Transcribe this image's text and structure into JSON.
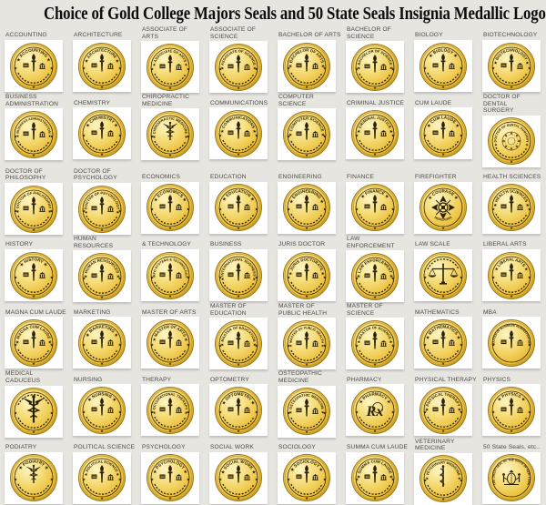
{
  "page": {
    "title": "Choice of Gold College Majors Seals and 50 State Seals Insignia Medallic Logos",
    "background_color": "#e7e5e0",
    "card_color": "#ffffff"
  },
  "colors": {
    "gold_light": "#fdf4c2",
    "gold_mid": "#f5da72",
    "gold_deep": "#eabe38",
    "gold_rim": "#c49a2a",
    "gold_edge": "#9a7716",
    "emblem_dark": "#2b2103",
    "ornate": "#7a5d12",
    "label_text": "#4b4b47",
    "title_text": "#0d0d0d"
  },
  "seals": [
    {
      "label": "ACCOUNTING",
      "seal_text": "ACCOUNTING",
      "center": "torch",
      "icon": "torch-emblem-icon"
    },
    {
      "label": "ARCHITECTURE",
      "seal_text": "ARCHITECTURE",
      "center": "torch",
      "icon": "torch-emblem-icon"
    },
    {
      "label": "ASSOCIATE OF ARTS",
      "seal_text": "ASSOCIATE OF ARTS",
      "center": "torch",
      "icon": "torch-emblem-icon"
    },
    {
      "label": "ASSOCIATE OF SCIENCE",
      "seal_text": "ASSOCIATE OF SCIENCE",
      "center": "torch",
      "icon": "torch-emblem-icon"
    },
    {
      "label": "BACHELOR OF ARTS",
      "seal_text": "BACHELOR OF ARTS",
      "center": "torch",
      "icon": "torch-emblem-icon"
    },
    {
      "label": "BACHELOR OF SCIENCE",
      "seal_text": "BACHELOR OF SCIENCE",
      "center": "torch",
      "icon": "torch-emblem-icon"
    },
    {
      "label": "BIOLOGY",
      "seal_text": "BIOLOGY",
      "center": "torch",
      "icon": "torch-emblem-icon"
    },
    {
      "label": "BIOTECHNOLOGY",
      "seal_text": "BIOTECHNOLOGY",
      "center": "torch",
      "icon": "torch-emblem-icon"
    },
    {
      "label": "BUSINESS\nADMINISTRATION",
      "seal_text": "BUSINESS ADMINISTRATION",
      "center": "torch",
      "icon": "torch-emblem-icon"
    },
    {
      "label": "CHEMISTRY",
      "seal_text": "CHEMISTRY",
      "center": "torch",
      "icon": "torch-emblem-icon"
    },
    {
      "label": "CHIROPRACTIC\nMEDICINE",
      "seal_text": "CHIROPRACTIC MEDICINE",
      "center": "caduceus",
      "icon": "caduceus-icon"
    },
    {
      "label": "COMMUNICATIONS",
      "seal_text": "COMMUNICATIONS",
      "center": "torch",
      "icon": "torch-emblem-icon"
    },
    {
      "label": "COMPUTER SCIENCE",
      "seal_text": "COMPUTER SCIENCE",
      "center": "torch",
      "icon": "torch-emblem-icon"
    },
    {
      "label": "CRIMINAL JUSTICE",
      "seal_text": "CRIMINAL JUSTICE",
      "center": "torch",
      "icon": "torch-emblem-icon"
    },
    {
      "label": "CUM LAUDE",
      "seal_text": "CUM LAUDE",
      "center": "torch",
      "icon": "torch-emblem-icon"
    },
    {
      "label": "DOCTOR OF DENTAL\nSURGERY",
      "seal_text": "DOCTOR OF DENTAL SURGERY",
      "center": "ornate",
      "icon": "ornate-crest-icon"
    },
    {
      "label": "DOCTOR OF\nPHILOSOPHY",
      "seal_text": "DOCTOR OF PHILOSOPHY",
      "center": "torch",
      "icon": "torch-emblem-icon"
    },
    {
      "label": "DOCTOR OF\nPSYCHOLOGY",
      "seal_text": "DOCTOR OF PSYCHOLOGY",
      "center": "torch",
      "icon": "torch-emblem-icon"
    },
    {
      "label": "ECONOMICS",
      "seal_text": "ECONOMICS",
      "center": "torch",
      "icon": "torch-emblem-icon"
    },
    {
      "label": "EDUCATION",
      "seal_text": "EDUCATION",
      "center": "torch",
      "icon": "torch-emblem-icon"
    },
    {
      "label": "ENGINEERING",
      "seal_text": "ENGINEERING",
      "center": "torch",
      "icon": "torch-emblem-icon"
    },
    {
      "label": "FINANCE",
      "seal_text": "FINANCE",
      "center": "torch",
      "icon": "torch-emblem-icon"
    },
    {
      "label": "FIREFIGHTER",
      "seal_text": "COURAGE",
      "bottom_text": "DEDICATION",
      "center": "cross",
      "icon": "maltese-cross-icon"
    },
    {
      "label": "HEALTH SCIENCES",
      "seal_text": "HEALTH SCIENCES",
      "center": "torch",
      "icon": "torch-emblem-icon"
    },
    {
      "label": "HISTORY",
      "seal_text": "HISTORY",
      "center": "torch",
      "icon": "torch-emblem-icon"
    },
    {
      "label": "HUMAN RESOURCES",
      "seal_text": "HUMAN RESOURCES",
      "center": "torch",
      "icon": "torch-emblem-icon"
    },
    {
      "label": "& TECHNOLOGY",
      "seal_text": "INFO SYSTEMS & TECHNOLOGY",
      "center": "torch",
      "icon": "torch-emblem-icon"
    },
    {
      "label": "BUSINESS",
      "seal_text": "INTERNATIONAL BUSINESS",
      "center": "torch",
      "icon": "torch-emblem-icon"
    },
    {
      "label": "JURIS DOCTOR",
      "seal_text": "JURIS DOCTORATE",
      "center": "torch",
      "icon": "torch-emblem-icon"
    },
    {
      "label": "LAW ENFORCEMENT",
      "seal_text": "LAW ENFORCEMENT",
      "center": "torch",
      "icon": "torch-emblem-icon"
    },
    {
      "label": "LAW SCALE",
      "seal_text": "",
      "center": "scale",
      "icon": "scale-of-justice-icon"
    },
    {
      "label": "LIBERAL ARTS",
      "seal_text": "LIBERAL ARTS",
      "center": "torch",
      "icon": "torch-emblem-icon"
    },
    {
      "label": "MAGNA CUM LAUDE",
      "seal_text": "MAGNA CUM LAUDE",
      "center": "torch",
      "icon": "torch-emblem-icon"
    },
    {
      "label": "MARKETING",
      "seal_text": "MARKETING",
      "center": "torch",
      "icon": "torch-emblem-icon"
    },
    {
      "label": "MASTER OF ARTS",
      "seal_text": "MASTER OF ARTS",
      "center": "torch",
      "icon": "torch-emblem-icon"
    },
    {
      "label": "MASTER OF EDUCATION",
      "seal_text": "MASTER OF EDUCATION",
      "center": "torch",
      "icon": "torch-emblem-icon"
    },
    {
      "label": "MASTER OF\nPUBLIC HEALTH",
      "seal_text": "MASTER OF PUBLIC HEALTH",
      "center": "torch",
      "icon": "torch-emblem-icon"
    },
    {
      "label": "MASTER OF SCIENCE",
      "seal_text": "MASTER OF SCIENCE",
      "center": "torch",
      "icon": "torch-emblem-icon"
    },
    {
      "label": "MATHEMATICS",
      "seal_text": "MATHEMATICS",
      "center": "torch",
      "icon": "torch-emblem-icon"
    },
    {
      "label": "MBA",
      "seal_text": "MASTER OF BUSINESS ADMINISTRATION",
      "center": "torch",
      "icon": "torch-emblem-icon"
    },
    {
      "label": "MEDICAL CADUCEUS",
      "seal_text": "",
      "center": "caduceus_large",
      "icon": "caduceus-icon"
    },
    {
      "label": "NURSING",
      "seal_text": "NURSING",
      "center": "torch",
      "icon": "torch-emblem-icon"
    },
    {
      "label": "THERAPY",
      "seal_text": "OCCUPATIONAL THERAPY",
      "center": "torch",
      "icon": "torch-emblem-icon"
    },
    {
      "label": "OPTOMETRY",
      "seal_text": "OPTOMETRY",
      "center": "torch",
      "icon": "torch-emblem-icon"
    },
    {
      "label": "OSTEOPATHIC MEDICINE",
      "seal_text": "OSTEOPATHIC MEDICINE",
      "center": "torch",
      "icon": "torch-emblem-icon"
    },
    {
      "label": "PHARMACY",
      "seal_text": "PHARMACY",
      "center": "rx",
      "icon": "rx-pharmacy-icon"
    },
    {
      "label": "PHYSICAL THERAPY",
      "seal_text": "PHYSICAL THERAPY",
      "center": "torch",
      "icon": "torch-emblem-icon"
    },
    {
      "label": "PHYSICS",
      "seal_text": "PHYSICS",
      "center": "torch",
      "icon": "torch-emblem-icon"
    },
    {
      "label": "PODIATRY",
      "seal_text": "PODIATRY",
      "center": "caduceus",
      "icon": "caduceus-icon"
    },
    {
      "label": "POLITICAL SCIENCE",
      "seal_text": "POLITICAL SCIENCE",
      "center": "torch",
      "icon": "torch-emblem-icon"
    },
    {
      "label": "PSYCHOLOGY",
      "seal_text": "PSYCHOLOGY",
      "center": "torch",
      "icon": "torch-emblem-icon"
    },
    {
      "label": "SOCIAL WORK",
      "seal_text": "SOCIAL WORK",
      "center": "torch",
      "icon": "torch-emblem-icon"
    },
    {
      "label": "SOCIOLOGY",
      "seal_text": "SOCIOLOGY",
      "center": "torch",
      "icon": "torch-emblem-icon"
    },
    {
      "label": "SUMMA CUM LAUDE",
      "seal_text": "SUMMA CUM LAUDE",
      "center": "torch",
      "icon": "torch-emblem-icon"
    },
    {
      "label": "VETERINARY MEDICINE",
      "seal_text": "VETERINARY MEDICINE",
      "center": "staff",
      "icon": "asclepius-staff-icon"
    },
    {
      "label": "50 State Seals, etc..",
      "seal_text": "THE GREAT SEAL OF THE STATE OF NEW YORK",
      "center": "state",
      "icon": "state-seal-icon"
    }
  ]
}
